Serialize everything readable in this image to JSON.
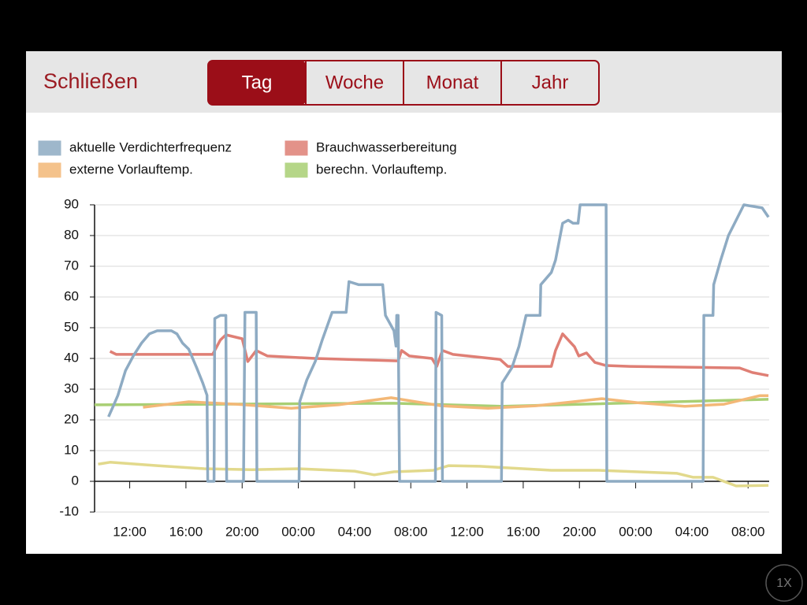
{
  "ui": {
    "close": "Schließen",
    "tabs": [
      "Tag",
      "Woche",
      "Monat",
      "Jahr"
    ],
    "selected": 0,
    "zoom": "1X"
  },
  "chart_data": {
    "type": "line",
    "grid": true,
    "xlim": [
      9.5,
      57.5
    ],
    "xticks": [
      {
        "value": 12,
        "label": "12:00"
      },
      {
        "value": 16,
        "label": "16:00"
      },
      {
        "value": 20,
        "label": "20:00"
      },
      {
        "value": 24,
        "label": "00:00"
      },
      {
        "value": 28,
        "label": "04:00"
      },
      {
        "value": 32,
        "label": "08:00"
      },
      {
        "value": 36,
        "label": "12:00"
      },
      {
        "value": 40,
        "label": "16:00"
      },
      {
        "value": 44,
        "label": "20:00"
      },
      {
        "value": 48,
        "label": "00:00"
      },
      {
        "value": 52,
        "label": "04:00"
      },
      {
        "value": 56,
        "label": "08:00"
      }
    ],
    "ylim": [
      -10,
      90
    ],
    "yticks": [
      -10,
      0,
      10,
      20,
      30,
      40,
      50,
      60,
      70,
      80,
      90
    ],
    "series": [
      {
        "name": "aktuelle Verdichterfrequenz",
        "color": "#8eabc3",
        "x": [
          10.49,
          10.88,
          11.16,
          11.7,
          12.28,
          12.84,
          13.4,
          13.96,
          14.97,
          15.36,
          15.76,
          16.2,
          16.76,
          17.2,
          17.5,
          17.55,
          18.0,
          18.05,
          18.45,
          18.84,
          18.9,
          20.1,
          20.2,
          21.0,
          21.05,
          24.05,
          24.1,
          24.6,
          25.2,
          25.7,
          26.4,
          27.4,
          27.6,
          28.3,
          30.0,
          30.2,
          30.8,
          30.95,
          31.0,
          31.1,
          31.2,
          33.75,
          33.8,
          34.2,
          34.25,
          38.45,
          38.5,
          39.2,
          39.7,
          40.2,
          41.2,
          41.25,
          42.0,
          42.3,
          42.8,
          43.2,
          43.55,
          43.9,
          44.05,
          45.9,
          45.95,
          52.8,
          52.85,
          53.5,
          53.55,
          54.05,
          54.6,
          55.15,
          55.7,
          57.0,
          57.45
        ],
        "values": [
          21,
          25,
          28,
          36,
          41,
          45,
          48,
          49,
          49,
          48,
          45,
          43,
          37,
          32,
          28,
          0,
          0,
          53,
          54,
          54,
          0,
          0,
          55,
          55,
          0,
          0,
          26,
          33,
          39,
          46,
          55,
          55,
          65,
          64,
          64,
          54,
          49,
          44,
          54,
          54,
          0,
          0,
          55,
          54,
          0,
          0,
          32,
          37,
          44,
          54,
          54,
          64,
          68,
          72,
          84,
          85,
          84,
          84,
          90,
          90,
          0,
          0,
          54,
          54,
          64,
          72,
          80,
          85,
          90,
          89,
          86
        ]
      },
      {
        "name": "Brauchwasserbereitung",
        "color": "#df7f75",
        "x": [
          10.6,
          11.05,
          17.9,
          18.45,
          18.84,
          20.0,
          20.4,
          21.0,
          21.8,
          25.2,
          31.1,
          31.35,
          31.9,
          33.5,
          33.85,
          34.25,
          35.0,
          38.35,
          38.9,
          42.0,
          42.3,
          42.8,
          43.65,
          43.95,
          44.5,
          45.1,
          45.9,
          47.6,
          55.4,
          56.3,
          57.45
        ],
        "values": [
          42.3,
          41.3,
          41.3,
          46,
          47.7,
          46.4,
          39,
          42.6,
          40.8,
          40,
          39.2,
          42.6,
          40.8,
          40,
          37.4,
          42.6,
          41.3,
          39.7,
          37.4,
          37.4,
          42.6,
          48,
          43.8,
          40.8,
          41.8,
          38.7,
          37.7,
          37.4,
          36.9,
          35.4,
          34.4
        ]
      },
      {
        "name": "externe Vorlauftemp.",
        "color": "#f3b877",
        "x": [
          12.95,
          16.2,
          19.6,
          23.5,
          26.85,
          30.6,
          34.15,
          37.5,
          40.9,
          45.6,
          48.15,
          51.5,
          54.3,
          56.85,
          57.45
        ],
        "values": [
          24.1,
          25.9,
          25.1,
          23.8,
          24.9,
          27.2,
          24.6,
          23.8,
          24.6,
          26.9,
          25.6,
          24.4,
          25.1,
          27.9,
          27.9
        ]
      },
      {
        "name": "berechn. Vorlauftemp.",
        "color": "#a9cf74",
        "x": [
          9.5,
          30.8,
          38.6,
          57.45
        ],
        "values": [
          24.9,
          25.4,
          24.4,
          26.7
        ]
      },
      {
        "color": "#e2d98c",
        "x": [
          9.75,
          10.6,
          13.96,
          17.3,
          20.7,
          24.05,
          28.0,
          29.4,
          30.8,
          33.6,
          34.7,
          36.9,
          42.0,
          45.35,
          50.95,
          52.1,
          53.5,
          55.15,
          57.45
        ],
        "values": [
          5.6,
          6.2,
          5.1,
          4.1,
          3.8,
          4.1,
          3.3,
          2.1,
          3.1,
          3.6,
          5.1,
          4.9,
          3.6,
          3.6,
          2.6,
          1.3,
          1.3,
          -1.5,
          -1.3
        ]
      }
    ]
  }
}
